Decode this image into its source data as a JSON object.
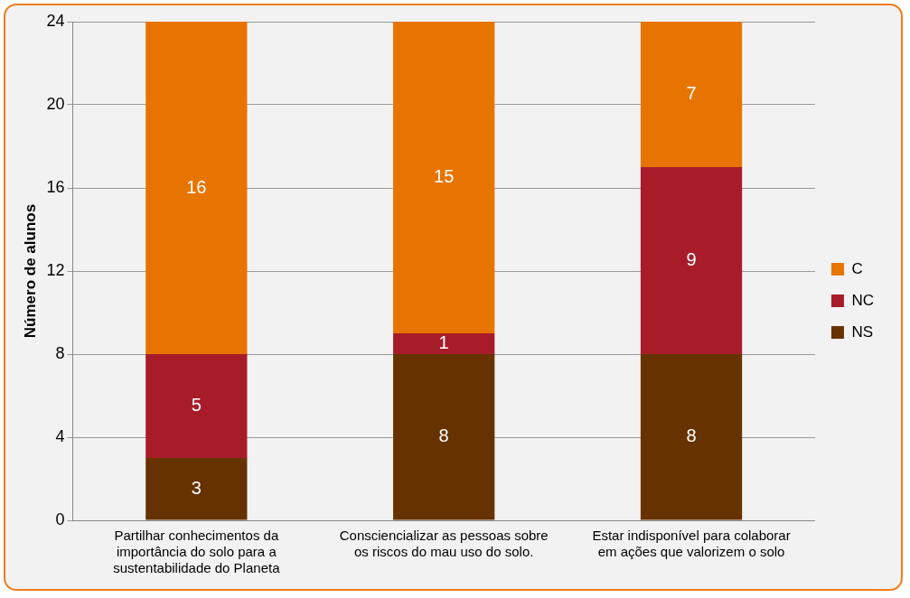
{
  "chart_data": {
    "type": "bar",
    "stacked": true,
    "ylabel": "Número de alunos",
    "categories": [
      "Partilhar conhecimentos da importância do solo para a sustentabilidade do Planeta",
      "Consciencializar as pessoas sobre os riscos do mau uso do solo.",
      "Estar indisponível para colaborar em ações que valorizem o solo"
    ],
    "series": [
      {
        "name": "NS",
        "color": "#663300",
        "values": [
          3,
          8,
          8
        ]
      },
      {
        "name": "NC",
        "color": "#a81c2a",
        "values": [
          5,
          1,
          9
        ]
      },
      {
        "name": "C",
        "color": "#e87400",
        "values": [
          16,
          15,
          7
        ]
      }
    ],
    "ylim": [
      0,
      24
    ],
    "yticks": [
      0,
      4,
      8,
      12,
      16,
      20,
      24
    ],
    "grid": "y",
    "legend": "right",
    "data_labels": true
  }
}
